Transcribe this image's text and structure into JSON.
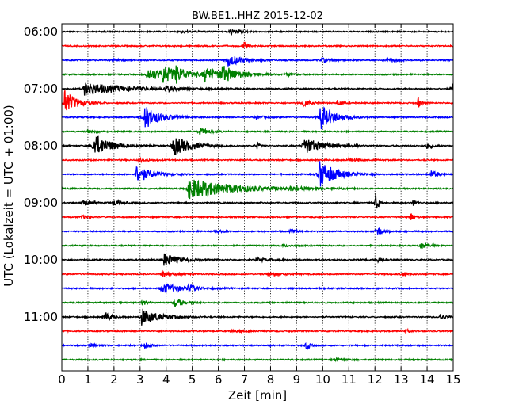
{
  "chart_data": {
    "type": "line",
    "title": "BW.BE1..HHZ 2015-12-02",
    "xlabel": "Zeit  [min]",
    "ylabel": "UTC (Lokalzeit = UTC + 01:00)",
    "xlim": [
      0,
      15
    ],
    "x_ticks": [
      0,
      1,
      2,
      3,
      4,
      5,
      6,
      7,
      8,
      9,
      10,
      11,
      12,
      13,
      14,
      15
    ],
    "x_tick_labels": [
      "0",
      "1",
      "2",
      "3",
      "4",
      "5",
      "6",
      "7",
      "8",
      "9",
      "10",
      "11",
      "12",
      "13",
      "14",
      "15"
    ],
    "y_tick_labels": [
      "06:00",
      "07:00",
      "08:00",
      "09:00",
      "10:00",
      "11:00"
    ],
    "y_tick_trace_index": [
      0,
      4,
      8,
      12,
      16,
      20
    ],
    "grid": "vertical dotted",
    "trace_colors": [
      "#000000",
      "#ff0000",
      "#0000ff",
      "#008000"
    ],
    "traces": [
      {
        "start": "06:00",
        "events": [
          [
            6.5,
            0.3,
            0.4
          ],
          [
            4.6,
            0.15,
            0.3
          ]
        ]
      },
      {
        "start": "06:15",
        "events": [
          [
            7.0,
            0.5,
            0.1
          ]
        ]
      },
      {
        "start": "06:30",
        "events": [
          [
            6.4,
            0.8,
            0.5
          ],
          [
            2.0,
            0.2,
            0.2
          ],
          [
            10.0,
            0.3,
            0.3
          ],
          [
            12.5,
            0.25,
            0.3
          ]
        ]
      },
      {
        "start": "06:45",
        "events": [
          [
            3.3,
            0.8,
            0.8
          ],
          [
            3.9,
            0.9,
            0.5
          ],
          [
            4.4,
            0.7,
            0.4
          ],
          [
            5.5,
            0.9,
            0.6
          ],
          [
            6.2,
            0.9,
            0.6
          ],
          [
            8.6,
            0.2,
            0.3
          ]
        ]
      },
      {
        "start": "07:00",
        "events": [
          [
            0.9,
            0.9,
            1.4
          ],
          [
            4.0,
            0.35,
            0.3
          ],
          [
            15.0,
            0.5,
            0.15
          ]
        ]
      },
      {
        "start": "07:15",
        "events": [
          [
            0.15,
            1.6,
            0.4
          ],
          [
            9.3,
            0.5,
            0.2
          ],
          [
            10.6,
            0.3,
            0.2
          ],
          [
            13.7,
            0.5,
            0.1
          ]
        ]
      },
      {
        "start": "07:30",
        "events": [
          [
            3.2,
            1.6,
            0.5
          ],
          [
            9.95,
            1.6,
            0.5
          ],
          [
            7.5,
            0.2,
            0.3
          ]
        ]
      },
      {
        "start": "07:45",
        "events": [
          [
            5.3,
            0.5,
            0.3
          ],
          [
            1.0,
            0.2,
            0.3
          ]
        ]
      },
      {
        "start": "08:00",
        "events": [
          [
            1.25,
            1.6,
            0.6
          ],
          [
            4.3,
            1.3,
            0.6
          ],
          [
            9.3,
            1.1,
            0.7
          ],
          [
            7.5,
            0.4,
            0.1
          ],
          [
            14.0,
            0.4,
            0.2
          ]
        ]
      },
      {
        "start": "08:15",
        "events": [
          [
            3.0,
            0.2,
            0.3
          ],
          [
            11.0,
            0.2,
            0.3
          ]
        ]
      },
      {
        "start": "08:30",
        "events": [
          [
            2.9,
            1.2,
            0.5
          ],
          [
            9.9,
            1.8,
            0.6
          ],
          [
            14.2,
            0.5,
            0.2
          ]
        ]
      },
      {
        "start": "08:45",
        "events": [
          [
            4.9,
            1.4,
            1.6
          ],
          [
            8.8,
            0.2,
            0.4
          ]
        ]
      },
      {
        "start": "09:00",
        "events": [
          [
            0.8,
            0.4,
            0.3
          ],
          [
            2.0,
            0.4,
            0.3
          ],
          [
            12.05,
            1.1,
            0.1
          ],
          [
            13.5,
            0.3,
            0.1
          ]
        ]
      },
      {
        "start": "09:15",
        "events": [
          [
            13.4,
            0.6,
            0.1
          ],
          [
            0.8,
            0.2,
            0.2
          ]
        ]
      },
      {
        "start": "09:30",
        "events": [
          [
            12.1,
            0.9,
            0.15
          ],
          [
            6.0,
            0.25,
            0.2
          ],
          [
            8.8,
            0.2,
            0.2
          ]
        ]
      },
      {
        "start": "09:45",
        "events": [
          [
            13.8,
            0.4,
            0.2
          ],
          [
            8.5,
            0.15,
            0.3
          ]
        ]
      },
      {
        "start": "10:00",
        "events": [
          [
            3.95,
            0.9,
            0.5
          ],
          [
            7.5,
            0.25,
            0.5
          ],
          [
            12.1,
            0.3,
            0.2
          ]
        ]
      },
      {
        "start": "10:15",
        "events": [
          [
            3.9,
            0.4,
            0.3
          ],
          [
            8.0,
            0.2,
            0.4
          ],
          [
            13.1,
            0.3,
            0.2
          ]
        ]
      },
      {
        "start": "10:30",
        "events": [
          [
            3.85,
            0.7,
            0.7
          ],
          [
            4.9,
            0.4,
            0.2
          ]
        ]
      },
      {
        "start": "10:45",
        "events": [
          [
            4.35,
            0.6,
            0.3
          ],
          [
            3.1,
            0.3,
            0.2
          ]
        ]
      },
      {
        "start": "11:00",
        "events": [
          [
            1.7,
            0.6,
            0.2
          ],
          [
            3.1,
            1.1,
            0.6
          ],
          [
            14.5,
            0.4,
            0.2
          ]
        ]
      },
      {
        "start": "11:15",
        "events": [
          [
            13.2,
            0.3,
            0.1
          ],
          [
            6.5,
            0.15,
            0.4
          ]
        ]
      },
      {
        "start": "11:30",
        "events": [
          [
            9.4,
            0.6,
            0.1
          ],
          [
            3.2,
            0.3,
            0.2
          ],
          [
            1.1,
            0.2,
            0.2
          ]
        ]
      },
      {
        "start": "11:45",
        "events": [
          [
            10.5,
            0.15,
            0.4
          ]
        ]
      }
    ]
  }
}
